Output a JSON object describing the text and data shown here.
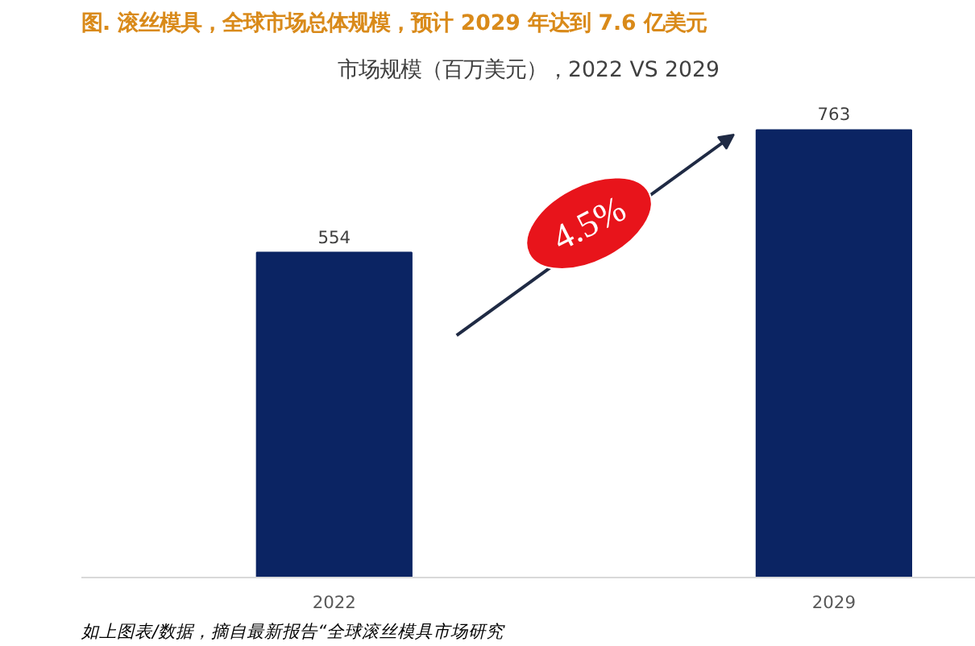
{
  "chart_data": {
    "type": "bar",
    "title": "图.    滚丝模具，全球市场总体规模，预计 2029 年达到 7.6 亿美元",
    "subtitle": "市场规模（百万美元），2022 VS 2029",
    "categories": [
      "2022",
      "2029"
    ],
    "values": [
      554,
      763
    ],
    "color": "#0b2463",
    "data_labels": true,
    "annotations": [
      "4.5%",
      "如上图表/数据，摘自最新报告“全球滚丝模具市场研究"
    ]
  }
}
